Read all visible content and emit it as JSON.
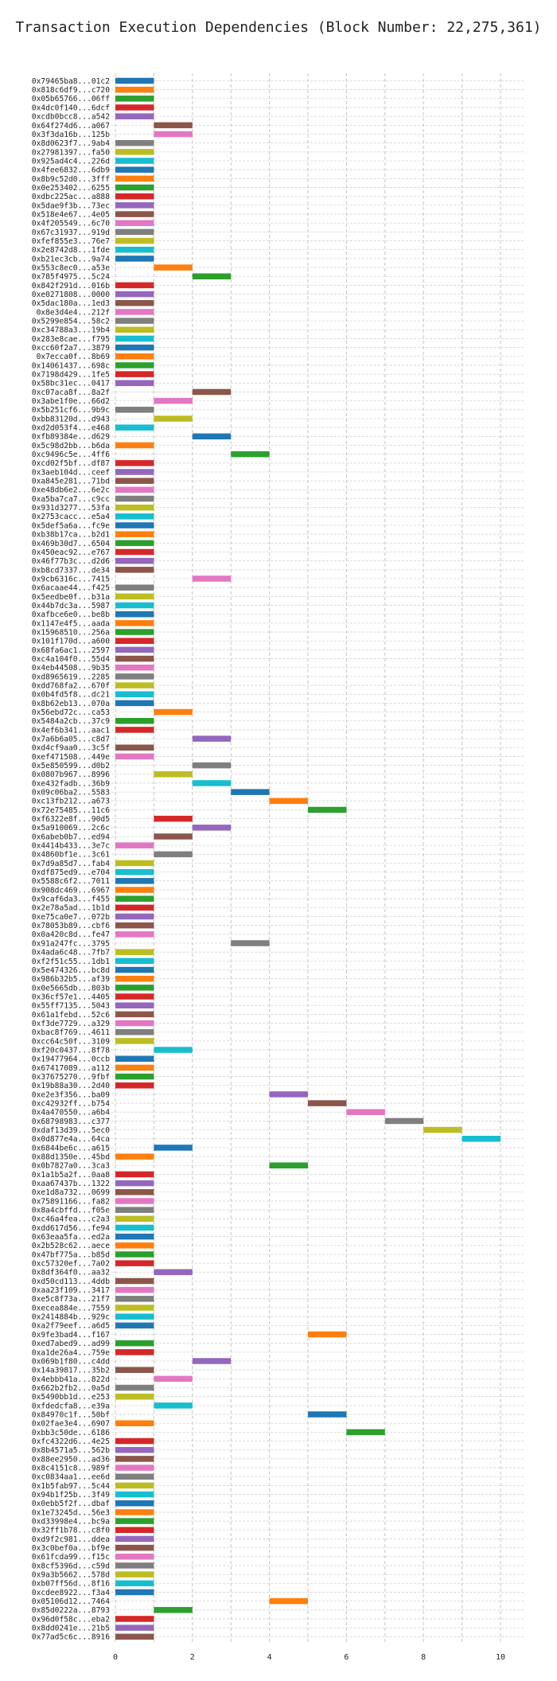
{
  "chart_data": {
    "type": "bar",
    "orientation": "horizontal-gantt",
    "title": "Transaction Execution Dependencies (Block Number: 22,275,361)",
    "xlabel": "",
    "ylabel": "",
    "xlim": [
      0,
      10.6
    ],
    "xticks": [
      "0",
      "2",
      "4",
      "6",
      "8",
      "10"
    ],
    "grid": true,
    "legend": "none",
    "palette": [
      "#1f77b4",
      "#ff7f0e",
      "#2ca02c",
      "#d62728",
      "#9467bd",
      "#8c564b",
      "#e377c2",
      "#7f7f7f",
      "#bcbd22",
      "#17becf"
    ],
    "transactions": [
      {
        "label": "0x79465ba8...01c2",
        "start": 0,
        "end": 1
      },
      {
        "label": "0x818c6df9...c720",
        "start": 0,
        "end": 1
      },
      {
        "label": "0x05b65766...06ff",
        "start": 0,
        "end": 1
      },
      {
        "label": "0x4dc0f140...6dcf",
        "start": 0,
        "end": 1
      },
      {
        "label": "0xcdb0bcc8...a542",
        "start": 0,
        "end": 1
      },
      {
        "label": "0x64f274d6...a067",
        "start": 1,
        "end": 2
      },
      {
        "label": "0x3f3da16b...125b",
        "start": 1,
        "end": 2
      },
      {
        "label": "0x8d0623f7...9ab4",
        "start": 0,
        "end": 1
      },
      {
        "label": "0x27981397...fa50",
        "start": 0,
        "end": 1
      },
      {
        "label": "0x925ad4c4...226d",
        "start": 0,
        "end": 1
      },
      {
        "label": "0x4fee6832...6db9",
        "start": 0,
        "end": 1
      },
      {
        "label": "0x8b9c52d0...3fff",
        "start": 0,
        "end": 1
      },
      {
        "label": "0x0e253402...6255",
        "start": 0,
        "end": 1
      },
      {
        "label": "0xdbc225ac...a888",
        "start": 0,
        "end": 1
      },
      {
        "label": "0x5dae9f3b...73ec",
        "start": 0,
        "end": 1
      },
      {
        "label": "0x518e4e67...4e05",
        "start": 0,
        "end": 1
      },
      {
        "label": "0x4f205549...6c70",
        "start": 0,
        "end": 1
      },
      {
        "label": "0x67c31937...919d",
        "start": 0,
        "end": 1
      },
      {
        "label": "0xfef855e3...76e7",
        "start": 0,
        "end": 1
      },
      {
        "label": "0x2e8742d8...1fde",
        "start": 0,
        "end": 1
      },
      {
        "label": "0xb21ec3cb...9a74",
        "start": 0,
        "end": 1
      },
      {
        "label": "0x553c8ec0...a53e",
        "start": 1,
        "end": 2
      },
      {
        "label": "0x785f4975...5c24",
        "start": 2,
        "end": 3
      },
      {
        "label": "0x842f291d...016b",
        "start": 0,
        "end": 1
      },
      {
        "label": "0xe0271808...0000",
        "start": 0,
        "end": 1
      },
      {
        "label": "0x5dac180a...1ed3",
        "start": 0,
        "end": 1
      },
      {
        "label": "0x8e3d4e4...212f",
        "start": 0,
        "end": 1
      },
      {
        "label": "0x5299e854...58c2",
        "start": 0,
        "end": 1
      },
      {
        "label": "0xc34788a3...19b4",
        "start": 0,
        "end": 1
      },
      {
        "label": "0x283e8cae...f795",
        "start": 0,
        "end": 1
      },
      {
        "label": "0xcc60f2a7...3879",
        "start": 0,
        "end": 1
      },
      {
        "label": "0x7ecca0f...8b69",
        "start": 0,
        "end": 1
      },
      {
        "label": "0x14061437...698c",
        "start": 0,
        "end": 1
      },
      {
        "label": "0x7198d429...1fe5",
        "start": 0,
        "end": 1
      },
      {
        "label": "0x58bc31ec...0417",
        "start": 0,
        "end": 1
      },
      {
        "label": "0xc07aca8f...8a2f",
        "start": 2,
        "end": 3
      },
      {
        "label": "0x3abe1f0e...66d2",
        "start": 1,
        "end": 2
      },
      {
        "label": "0x5b251cf6...9b9c",
        "start": 0,
        "end": 1
      },
      {
        "label": "0xbb83120d...d943",
        "start": 1,
        "end": 2
      },
      {
        "label": "0xd2d053f4...e468",
        "start": 0,
        "end": 1
      },
      {
        "label": "0xfb89384e...d629",
        "start": 2,
        "end": 3
      },
      {
        "label": "0x5c98d2bb...b6da",
        "start": 0,
        "end": 1
      },
      {
        "label": "0xc9496c5e...4ff6",
        "start": 3,
        "end": 4
      },
      {
        "label": "0xcd02f5bf...df87",
        "start": 0,
        "end": 1
      },
      {
        "label": "0x3aeb104d...ceef",
        "start": 0,
        "end": 1
      },
      {
        "label": "0xa845e281...71bd",
        "start": 0,
        "end": 1
      },
      {
        "label": "0xe48db6e2...6e2c",
        "start": 0,
        "end": 1
      },
      {
        "label": "0xa5ba7ca7...c9cc",
        "start": 0,
        "end": 1
      },
      {
        "label": "0x931d3277...53fa",
        "start": 0,
        "end": 1
      },
      {
        "label": "0x2753cacc...e5a4",
        "start": 0,
        "end": 1
      },
      {
        "label": "0x5def5a6a...fc9e",
        "start": 0,
        "end": 1
      },
      {
        "label": "0xb38b17ca...b2d1",
        "start": 0,
        "end": 1
      },
      {
        "label": "0x469b30d7...6504",
        "start": 0,
        "end": 1
      },
      {
        "label": "0x450eac92...e767",
        "start": 0,
        "end": 1
      },
      {
        "label": "0x46f77b3c...d2d6",
        "start": 0,
        "end": 1
      },
      {
        "label": "0xb8cd7337...de34",
        "start": 0,
        "end": 1
      },
      {
        "label": "0x9cb6316c...7415",
        "start": 2,
        "end": 3
      },
      {
        "label": "0x6acaae44...f425",
        "start": 0,
        "end": 1
      },
      {
        "label": "0x5eedbe0f...b31a",
        "start": 0,
        "end": 1
      },
      {
        "label": "0x44b7dc3a...5987",
        "start": 0,
        "end": 1
      },
      {
        "label": "0xafbce6e0...be8b",
        "start": 0,
        "end": 1
      },
      {
        "label": "0x1147e4f5...aada",
        "start": 0,
        "end": 1
      },
      {
        "label": "0x15968510...256a",
        "start": 0,
        "end": 1
      },
      {
        "label": "0x101f170d...a600",
        "start": 0,
        "end": 1
      },
      {
        "label": "0x68fa6ac1...2597",
        "start": 0,
        "end": 1
      },
      {
        "label": "0xc4a104f0...55d4",
        "start": 0,
        "end": 1
      },
      {
        "label": "0x4eb44508...9b35",
        "start": 0,
        "end": 1
      },
      {
        "label": "0xd8965619...2285",
        "start": 0,
        "end": 1
      },
      {
        "label": "0xdd768fa2...670f",
        "start": 0,
        "end": 1
      },
      {
        "label": "0x0b4fd5f8...dc21",
        "start": 0,
        "end": 1
      },
      {
        "label": "0x8b62eb13...070a",
        "start": 0,
        "end": 1
      },
      {
        "label": "0x56ebd72c...ca53",
        "start": 1,
        "end": 2
      },
      {
        "label": "0x5484a2cb...37c9",
        "start": 0,
        "end": 1
      },
      {
        "label": "0x4ef6b341...aac1",
        "start": 0,
        "end": 1
      },
      {
        "label": "0x7a6b6a05...c8d7",
        "start": 2,
        "end": 3
      },
      {
        "label": "0xd4cf9aa0...3c5f",
        "start": 0,
        "end": 1
      },
      {
        "label": "0xef471508...449e",
        "start": 0,
        "end": 1
      },
      {
        "label": "0x5e850599...d0b2",
        "start": 2,
        "end": 3
      },
      {
        "label": "0x0807b967...8996",
        "start": 1,
        "end": 2
      },
      {
        "label": "0xe432fadb...36b9",
        "start": 2,
        "end": 3
      },
      {
        "label": "0x09c06ba2...5583",
        "start": 3,
        "end": 4
      },
      {
        "label": "0xc13fb212...a673",
        "start": 4,
        "end": 5
      },
      {
        "label": "0x72e75485...11c6",
        "start": 5,
        "end": 6
      },
      {
        "label": "0xf6322e8f...90d5",
        "start": 1,
        "end": 2
      },
      {
        "label": "0x5a910069...2c6c",
        "start": 2,
        "end": 3
      },
      {
        "label": "0x6abeb0b7...ed94",
        "start": 1,
        "end": 2
      },
      {
        "label": "0x4414b433...3e7c",
        "start": 0,
        "end": 1
      },
      {
        "label": "0x4860bf1e...3c61",
        "start": 1,
        "end": 2
      },
      {
        "label": "0x7d9a85d7...fab4",
        "start": 0,
        "end": 1
      },
      {
        "label": "0xdf875ed9...e704",
        "start": 0,
        "end": 1
      },
      {
        "label": "0x5588c6f2...7011",
        "start": 0,
        "end": 1
      },
      {
        "label": "0x908dc469...6967",
        "start": 0,
        "end": 1
      },
      {
        "label": "0x9caf6da3...f455",
        "start": 0,
        "end": 1
      },
      {
        "label": "0x2e78a5ad...1b1d",
        "start": 0,
        "end": 1
      },
      {
        "label": "0xe75ca0e7...072b",
        "start": 0,
        "end": 1
      },
      {
        "label": "0x78053b89...cbf6",
        "start": 0,
        "end": 1
      },
      {
        "label": "0x0a420c8d...fe47",
        "start": 0,
        "end": 1
      },
      {
        "label": "0x91a247fc...3795",
        "start": 3,
        "end": 4
      },
      {
        "label": "0x4ada6c48...7fb7",
        "start": 0,
        "end": 1
      },
      {
        "label": "0xf2f51c55...1db1",
        "start": 0,
        "end": 1
      },
      {
        "label": "0x5e474326...bc8d",
        "start": 0,
        "end": 1
      },
      {
        "label": "0x986b32b5...af39",
        "start": 0,
        "end": 1
      },
      {
        "label": "0x0e5665db...803b",
        "start": 0,
        "end": 1
      },
      {
        "label": "0x36cf57e1...4405",
        "start": 0,
        "end": 1
      },
      {
        "label": "0x55ff7135...5043",
        "start": 0,
        "end": 1
      },
      {
        "label": "0x61a1febd...52c6",
        "start": 0,
        "end": 1
      },
      {
        "label": "0xf3de7729...a329",
        "start": 0,
        "end": 1
      },
      {
        "label": "0xbac8f769...4611",
        "start": 0,
        "end": 1
      },
      {
        "label": "0xcc64c50f...3109",
        "start": 0,
        "end": 1
      },
      {
        "label": "0xf20c0437...8f78",
        "start": 1,
        "end": 2
      },
      {
        "label": "0x19477964...0ccb",
        "start": 0,
        "end": 1
      },
      {
        "label": "0x67417089...a112",
        "start": 0,
        "end": 1
      },
      {
        "label": "0x37675270...9fbf",
        "start": 0,
        "end": 1
      },
      {
        "label": "0x19b88a30...2d40",
        "start": 0,
        "end": 1
      },
      {
        "label": "0xe2e3f356...ba09",
        "start": 4,
        "end": 5
      },
      {
        "label": "0xc42932ff...b754",
        "start": 5,
        "end": 6
      },
      {
        "label": "0x4a470550...a6b4",
        "start": 6,
        "end": 7
      },
      {
        "label": "0x68798983...c377",
        "start": 7,
        "end": 8
      },
      {
        "label": "0xdaf13d39...5ec0",
        "start": 8,
        "end": 9
      },
      {
        "label": "0x0d877e4a...64ca",
        "start": 9,
        "end": 10
      },
      {
        "label": "0x6844be6c...a615",
        "start": 1,
        "end": 2
      },
      {
        "label": "0x88d1350e...45bd",
        "start": 0,
        "end": 1
      },
      {
        "label": "0x0b7827a0...3ca3",
        "start": 4,
        "end": 5
      },
      {
        "label": "0x1a1b5a2f...0aa8",
        "start": 0,
        "end": 1
      },
      {
        "label": "0xaa67437b...1322",
        "start": 0,
        "end": 1
      },
      {
        "label": "0xe1d8a732...0699",
        "start": 0,
        "end": 1
      },
      {
        "label": "0x75891166...fa82",
        "start": 0,
        "end": 1
      },
      {
        "label": "0x8a4cbffd...f05e",
        "start": 0,
        "end": 1
      },
      {
        "label": "0xc46a4fea...c2a3",
        "start": 0,
        "end": 1
      },
      {
        "label": "0xdd617d56...fe94",
        "start": 0,
        "end": 1
      },
      {
        "label": "0x63eaa5fa...ed2a",
        "start": 0,
        "end": 1
      },
      {
        "label": "0x2b528c62...aece",
        "start": 0,
        "end": 1
      },
      {
        "label": "0x47bf775a...b85d",
        "start": 0,
        "end": 1
      },
      {
        "label": "0xc57320ef...7a02",
        "start": 0,
        "end": 1
      },
      {
        "label": "0x8df364f0...aa32",
        "start": 1,
        "end": 2
      },
      {
        "label": "0xd50cd113...4ddb",
        "start": 0,
        "end": 1
      },
      {
        "label": "0xaa23f109...3417",
        "start": 0,
        "end": 1
      },
      {
        "label": "0xe5c8f73a...21f7",
        "start": 0,
        "end": 1
      },
      {
        "label": "0xecea884e...7559",
        "start": 0,
        "end": 1
      },
      {
        "label": "0x2414884b...929c",
        "start": 0,
        "end": 1
      },
      {
        "label": "0xa2f79eef...a6d5",
        "start": 0,
        "end": 1
      },
      {
        "label": "0x9fe3bad4...f167",
        "start": 5,
        "end": 6
      },
      {
        "label": "0xed7abed9...ad99",
        "start": 0,
        "end": 1
      },
      {
        "label": "0xa1de26a4...759e",
        "start": 0,
        "end": 1
      },
      {
        "label": "0x069b1f80...c4dd",
        "start": 2,
        "end": 3
      },
      {
        "label": "0x14a39817...35b2",
        "start": 0,
        "end": 1
      },
      {
        "label": "0x4ebbb41a...822d",
        "start": 1,
        "end": 2
      },
      {
        "label": "0x662b2fb2...0a5d",
        "start": 0,
        "end": 1
      },
      {
        "label": "0x5490bb1d...e253",
        "start": 0,
        "end": 1
      },
      {
        "label": "0xfdedcfa8...e39a",
        "start": 1,
        "end": 2
      },
      {
        "label": "0x84970c1f...50bf",
        "start": 5,
        "end": 6
      },
      {
        "label": "0x02fae3e4...6907",
        "start": 0,
        "end": 1
      },
      {
        "label": "0xbb3c50de...6186",
        "start": 6,
        "end": 7
      },
      {
        "label": "0xfc4322d6...4e25",
        "start": 0,
        "end": 1
      },
      {
        "label": "0x8b4571a5...562b",
        "start": 0,
        "end": 1
      },
      {
        "label": "0x88ee2950...ad36",
        "start": 0,
        "end": 1
      },
      {
        "label": "0x8c4151c8...989f",
        "start": 0,
        "end": 1
      },
      {
        "label": "0xc0834aa1...ee6d",
        "start": 0,
        "end": 1
      },
      {
        "label": "0x1b5fab97...5c44",
        "start": 0,
        "end": 1
      },
      {
        "label": "0x94b1f25b...3f49",
        "start": 0,
        "end": 1
      },
      {
        "label": "0x0ebb5f2f...dbaf",
        "start": 0,
        "end": 1
      },
      {
        "label": "0x1e73245d...56e3",
        "start": 0,
        "end": 1
      },
      {
        "label": "0xd33998e4...bc9a",
        "start": 0,
        "end": 1
      },
      {
        "label": "0x32ff1b78...c8f0",
        "start": 0,
        "end": 1
      },
      {
        "label": "0xd9f2c981...ddea",
        "start": 0,
        "end": 1
      },
      {
        "label": "0x3c0bef0a...bf9e",
        "start": 0,
        "end": 1
      },
      {
        "label": "0x61fcda99...f15c",
        "start": 0,
        "end": 1
      },
      {
        "label": "0x8cf5396d...c59d",
        "start": 0,
        "end": 1
      },
      {
        "label": "0x9a3b5662...578d",
        "start": 0,
        "end": 1
      },
      {
        "label": "0xb07ff56d...8f16",
        "start": 0,
        "end": 1
      },
      {
        "label": "0xcdee8922...f3a4",
        "start": 0,
        "end": 1
      },
      {
        "label": "0x05106d12...7464",
        "start": 4,
        "end": 5
      },
      {
        "label": "0x85d0222a...8793",
        "start": 1,
        "end": 2
      },
      {
        "label": "0x96d0f58c...eba2",
        "start": 0,
        "end": 1
      },
      {
        "label": "0x8dd0241e...21b5",
        "start": 0,
        "end": 1
      },
      {
        "label": "0x77ad5c6c...8916",
        "start": 0,
        "end": 1
      }
    ]
  }
}
